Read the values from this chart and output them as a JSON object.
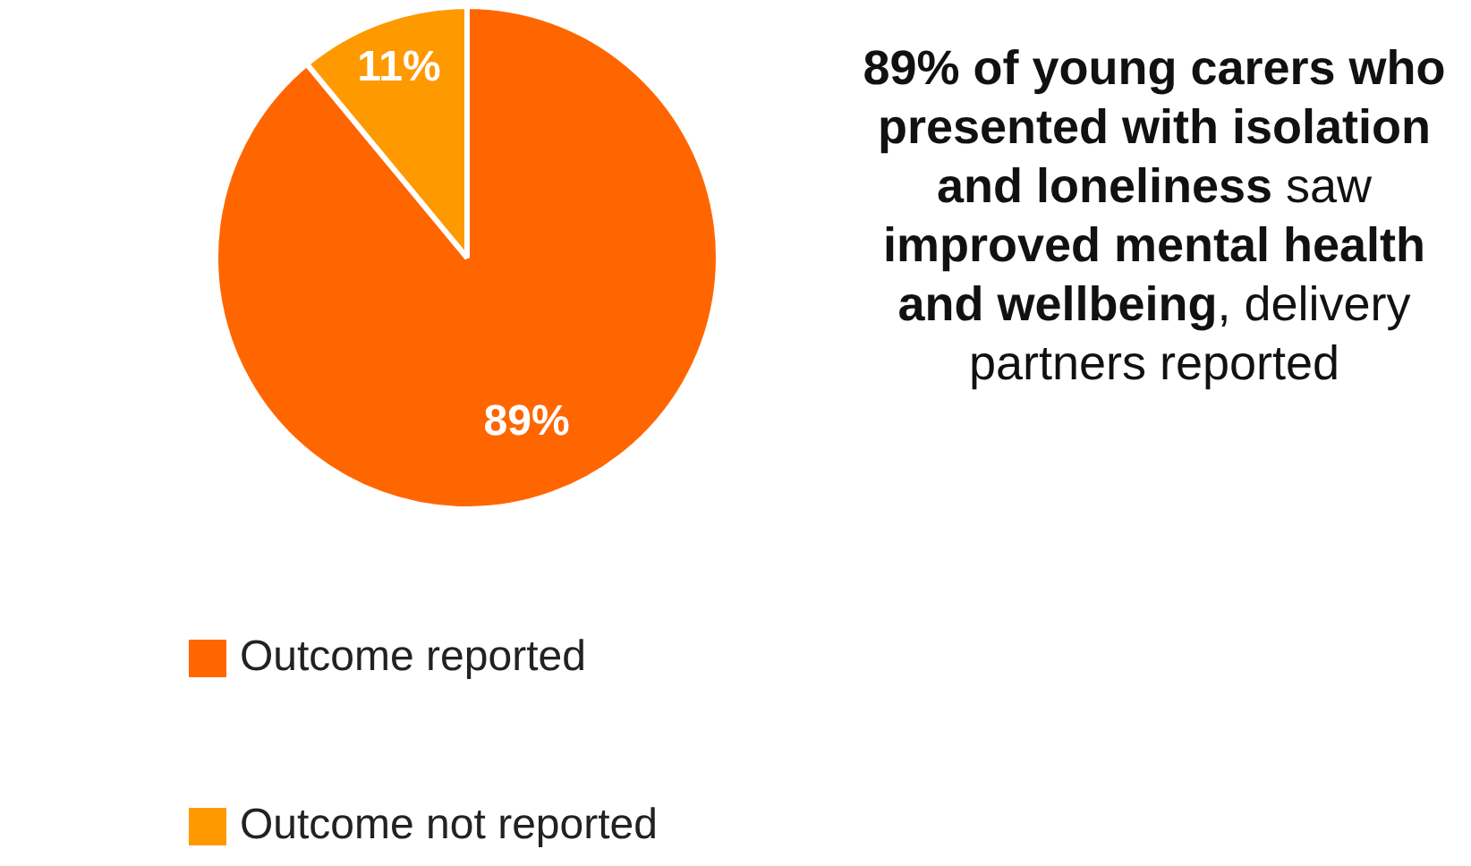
{
  "chart_data": {
    "type": "pie",
    "categories": [
      "Outcome reported",
      "Outcome not reported"
    ],
    "values": [
      89,
      11
    ],
    "colors": [
      "#ff6600",
      "#ff9900"
    ],
    "value_labels": [
      "89%",
      "11%"
    ],
    "legend": "bottom left",
    "annotations": [
      "89% of young carers who presented with isolation and loneliness",
      "saw",
      "improved mental health and wellbeing",
      ", delivery partners reported"
    ]
  }
}
